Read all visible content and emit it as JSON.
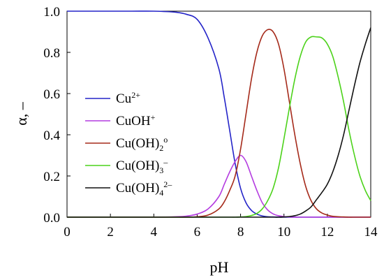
{
  "chart_data": {
    "type": "line",
    "title": "",
    "xlabel": "pH",
    "ylabel": "α, –",
    "xlim": [
      0,
      14
    ],
    "ylim": [
      0,
      1.0
    ],
    "xticks": [
      "0",
      "2",
      "4",
      "6",
      "8",
      "10",
      "12",
      "14"
    ],
    "yticks": [
      "0.0",
      "0.2",
      "0.4",
      "0.6",
      "0.8",
      "1.0"
    ],
    "grid": false,
    "legend_position": "left-middle",
    "x": [
      0,
      1,
      2,
      3,
      4,
      5,
      5.5,
      6,
      6.5,
      7,
      7.25,
      7.5,
      7.75,
      8,
      8.25,
      8.5,
      8.75,
      9,
      9.25,
      9.5,
      9.75,
      10,
      10.25,
      10.5,
      10.75,
      11,
      11.25,
      11.5,
      11.75,
      12,
      12.25,
      12.5,
      12.75,
      13,
      13.25,
      13.5,
      13.75,
      14
    ],
    "series": [
      {
        "name": "Cu2+",
        "color": "#2424c8",
        "legend": {
          "base": "Cu",
          "sup": "2+",
          "sub": ""
        },
        "values": [
          1.0,
          1.0,
          1.0,
          1.0,
          1.0,
          0.995,
          0.985,
          0.96,
          0.87,
          0.72,
          0.58,
          0.42,
          0.26,
          0.14,
          0.07,
          0.033,
          0.015,
          0.006,
          0.002,
          0.001,
          0,
          0,
          0,
          0,
          0,
          0,
          0,
          0,
          0,
          0,
          0,
          0,
          0,
          0,
          0,
          0,
          0,
          0
        ]
      },
      {
        "name": "CuOH+",
        "color": "#b43ce0",
        "legend": {
          "base": "CuOH",
          "sup": "+",
          "sub": ""
        },
        "values": [
          0,
          0,
          0,
          0,
          0,
          0.002,
          0.005,
          0.015,
          0.04,
          0.1,
          0.16,
          0.22,
          0.27,
          0.3,
          0.27,
          0.2,
          0.13,
          0.07,
          0.035,
          0.016,
          0.007,
          0.003,
          0.001,
          0,
          0,
          0,
          0,
          0,
          0,
          0,
          0,
          0,
          0,
          0,
          0,
          0,
          0,
          0
        ]
      },
      {
        "name": "Cu(OH)2o",
        "color": "#a52a1a",
        "legend": {
          "base": "Cu(OH)",
          "sup": "o",
          "sub": "2"
        },
        "values": [
          0,
          0,
          0,
          0,
          0,
          0,
          0,
          0.002,
          0.01,
          0.04,
          0.075,
          0.13,
          0.2,
          0.33,
          0.5,
          0.67,
          0.8,
          0.88,
          0.91,
          0.9,
          0.84,
          0.72,
          0.56,
          0.4,
          0.26,
          0.15,
          0.08,
          0.04,
          0.02,
          0.01,
          0.004,
          0.002,
          0.001,
          0,
          0,
          0,
          0,
          0
        ]
      },
      {
        "name": "Cu(OH)3-",
        "color": "#4cd21a",
        "legend": {
          "base": "Cu(OH)",
          "sup": "–",
          "sub": "3"
        },
        "values": [
          0,
          0,
          0,
          0,
          0,
          0,
          0,
          0,
          0,
          0,
          0,
          0,
          0,
          0.001,
          0.003,
          0.008,
          0.018,
          0.04,
          0.08,
          0.14,
          0.24,
          0.38,
          0.53,
          0.67,
          0.78,
          0.85,
          0.875,
          0.875,
          0.87,
          0.84,
          0.78,
          0.68,
          0.56,
          0.42,
          0.3,
          0.2,
          0.13,
          0.08
        ]
      },
      {
        "name": "Cu(OH)42-",
        "color": "#111111",
        "legend": {
          "base": "Cu(OH)",
          "sup": "2–",
          "sub": "4"
        },
        "values": [
          0,
          0,
          0,
          0,
          0,
          0,
          0,
          0,
          0,
          0,
          0,
          0,
          0,
          0,
          0,
          0,
          0,
          0,
          0,
          0,
          0,
          0.001,
          0.003,
          0.007,
          0.015,
          0.03,
          0.05,
          0.085,
          0.12,
          0.16,
          0.22,
          0.3,
          0.4,
          0.52,
          0.64,
          0.75,
          0.84,
          0.92
        ]
      }
    ]
  }
}
